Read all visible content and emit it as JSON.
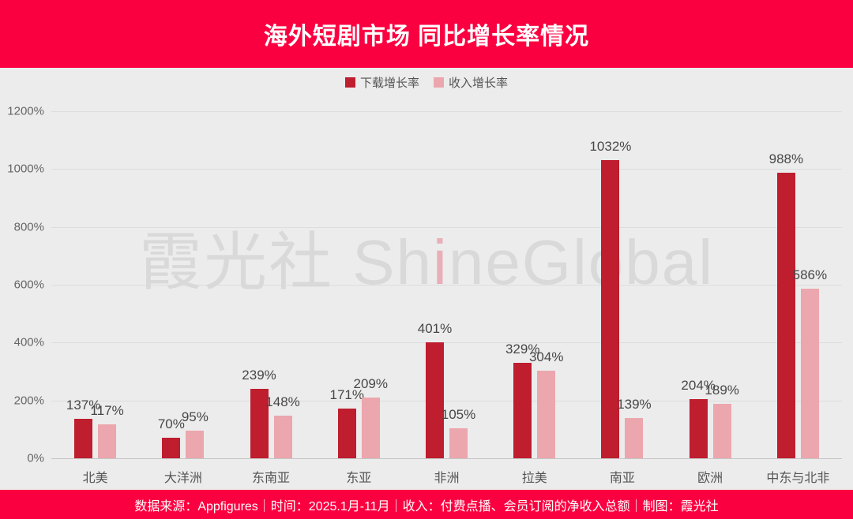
{
  "header": {
    "title": "海外短剧市场 同比增长率情况"
  },
  "legend": [
    {
      "label": "下载增长率",
      "color": "#be1e2e"
    },
    {
      "label": "收入增长率",
      "color": "#eca6ad"
    }
  ],
  "watermark": {
    "cjk": "霞光社",
    "latin_pre": "Sh",
    "latin_accent": "i",
    "latin_post": "neGlobal"
  },
  "footer": {
    "text": "数据来源：Appfigures｜时间：2025.1月-11月｜收入：付费点播、会员订阅的净收入总额｜制图：霞光社"
  },
  "colors": {
    "banner_red": "#fb0040",
    "download_bar": "#be1e2e",
    "revenue_bar": "#eca6ad",
    "chart_background": "#ececec",
    "watermark_gray": "#d9d9d9",
    "watermark_accent": "#e9aeb6"
  },
  "chart_data": {
    "type": "bar",
    "title": "海外短剧市场 同比增长率情况",
    "categories": [
      "北美",
      "大洋洲",
      "东南亚",
      "东亚",
      "非洲",
      "拉美",
      "南亚",
      "欧洲",
      "中东与北非"
    ],
    "series": [
      {
        "name": "下载增长率",
        "color": "#be1e2e",
        "values": [
          137,
          70,
          239,
          171,
          401,
          329,
          1032,
          204,
          988
        ]
      },
      {
        "name": "收入增长率",
        "color": "#eca6ad",
        "values": [
          117,
          95,
          148,
          209,
          105,
          304,
          139,
          189,
          586
        ]
      }
    ],
    "unit": "%",
    "xlabel": "",
    "ylabel": "",
    "ylim": [
      0,
      1200
    ],
    "ytick_step": 200,
    "yticks": [
      "0%",
      "200%",
      "400%",
      "600%",
      "800%",
      "1000%",
      "1200%"
    ],
    "grid": true,
    "legend_position": "top",
    "value_labels": true
  }
}
